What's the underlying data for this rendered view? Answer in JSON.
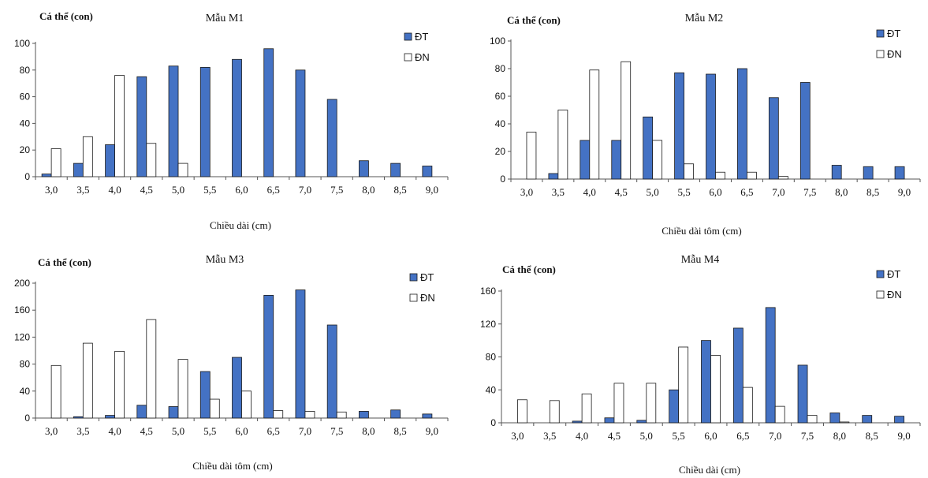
{
  "colors": {
    "dt": "#4472C4",
    "dn": "#FFFFFF",
    "stroke": "#1a1a1a",
    "axis": "#555555"
  },
  "chart_data": [
    {
      "type": "bar",
      "title": "Mẫu M1",
      "ylabel": "Cá thể (con)",
      "xlabel": "Chiều dài (cm)",
      "ylim": [
        0,
        100
      ],
      "yticks": [
        0,
        20,
        40,
        60,
        80,
        100
      ],
      "categories": [
        "3,0",
        "3,5",
        "4,0",
        "4,5",
        "5,0",
        "5,5",
        "6,0",
        "6,5",
        "7,0",
        "7,5",
        "8,0",
        "8,5",
        "9,0"
      ],
      "legend": "top-right",
      "series": [
        {
          "name": "ĐT",
          "values": [
            2,
            10,
            24,
            75,
            83,
            82,
            88,
            96,
            80,
            58,
            12,
            10,
            8
          ]
        },
        {
          "name": "ĐN",
          "values": [
            21,
            30,
            76,
            25,
            10,
            0,
            0,
            0,
            0,
            0,
            0,
            0,
            0
          ]
        }
      ]
    },
    {
      "type": "bar",
      "title": "Mẫu M2",
      "ylabel": "Cá thể (con)",
      "xlabel": "Chiều dài tôm (cm)",
      "ylim": [
        0,
        100
      ],
      "yticks": [
        0,
        20,
        40,
        60,
        80,
        100
      ],
      "categories": [
        "3,0",
        "3,5",
        "4,0",
        "4,5",
        "5,0",
        "5,5",
        "6,0",
        "6,5",
        "7,0",
        "7,5",
        "8,0",
        "8,5",
        "9,0"
      ],
      "legend": "top-right",
      "series": [
        {
          "name": "ĐT",
          "values": [
            0,
            4,
            28,
            28,
            45,
            77,
            76,
            80,
            59,
            70,
            10,
            9,
            9
          ]
        },
        {
          "name": "ĐN",
          "values": [
            34,
            50,
            79,
            85,
            28,
            11,
            5,
            5,
            2,
            0,
            0,
            0,
            0
          ]
        }
      ]
    },
    {
      "type": "bar",
      "title": "Mẫu M3",
      "ylabel": "Cá thể (con)",
      "xlabel": "Chiều dài tôm (cm)",
      "ylim": [
        0,
        200
      ],
      "yticks": [
        0,
        40,
        80,
        120,
        160,
        200
      ],
      "categories": [
        "3,0",
        "3,5",
        "4,0",
        "4,5",
        "5,0",
        "5,5",
        "6,0",
        "6,5",
        "7,0",
        "7,5",
        "8,0",
        "8,5",
        "9,0"
      ],
      "legend": "top-right",
      "series": [
        {
          "name": "ĐT",
          "values": [
            0,
            2,
            4,
            19,
            17,
            69,
            90,
            182,
            190,
            138,
            10,
            12,
            6
          ]
        },
        {
          "name": "ĐN",
          "values": [
            78,
            111,
            99,
            146,
            87,
            28,
            40,
            11,
            10,
            9,
            0,
            0,
            0
          ]
        }
      ]
    },
    {
      "type": "bar",
      "title": "Mẫu M4",
      "ylabel": "Cá thể (con)",
      "xlabel": "Chiều dài (cm)",
      "ylim": [
        0,
        160
      ],
      "yticks": [
        0,
        40,
        80,
        120,
        160
      ],
      "categories": [
        "3,0",
        "3,5",
        "4,0",
        "4,5",
        "5,0",
        "5,5",
        "6,0",
        "6,5",
        "7,0",
        "7,5",
        "8,0",
        "8,5",
        "9,0"
      ],
      "legend": "top-right",
      "series": [
        {
          "name": "ĐT",
          "values": [
            0,
            0,
            2,
            6,
            3,
            40,
            100,
            115,
            140,
            70,
            12,
            9,
            8
          ]
        },
        {
          "name": "ĐN",
          "values": [
            28,
            27,
            35,
            48,
            48,
            92,
            82,
            43,
            20,
            9,
            1,
            0,
            0
          ]
        }
      ]
    }
  ]
}
